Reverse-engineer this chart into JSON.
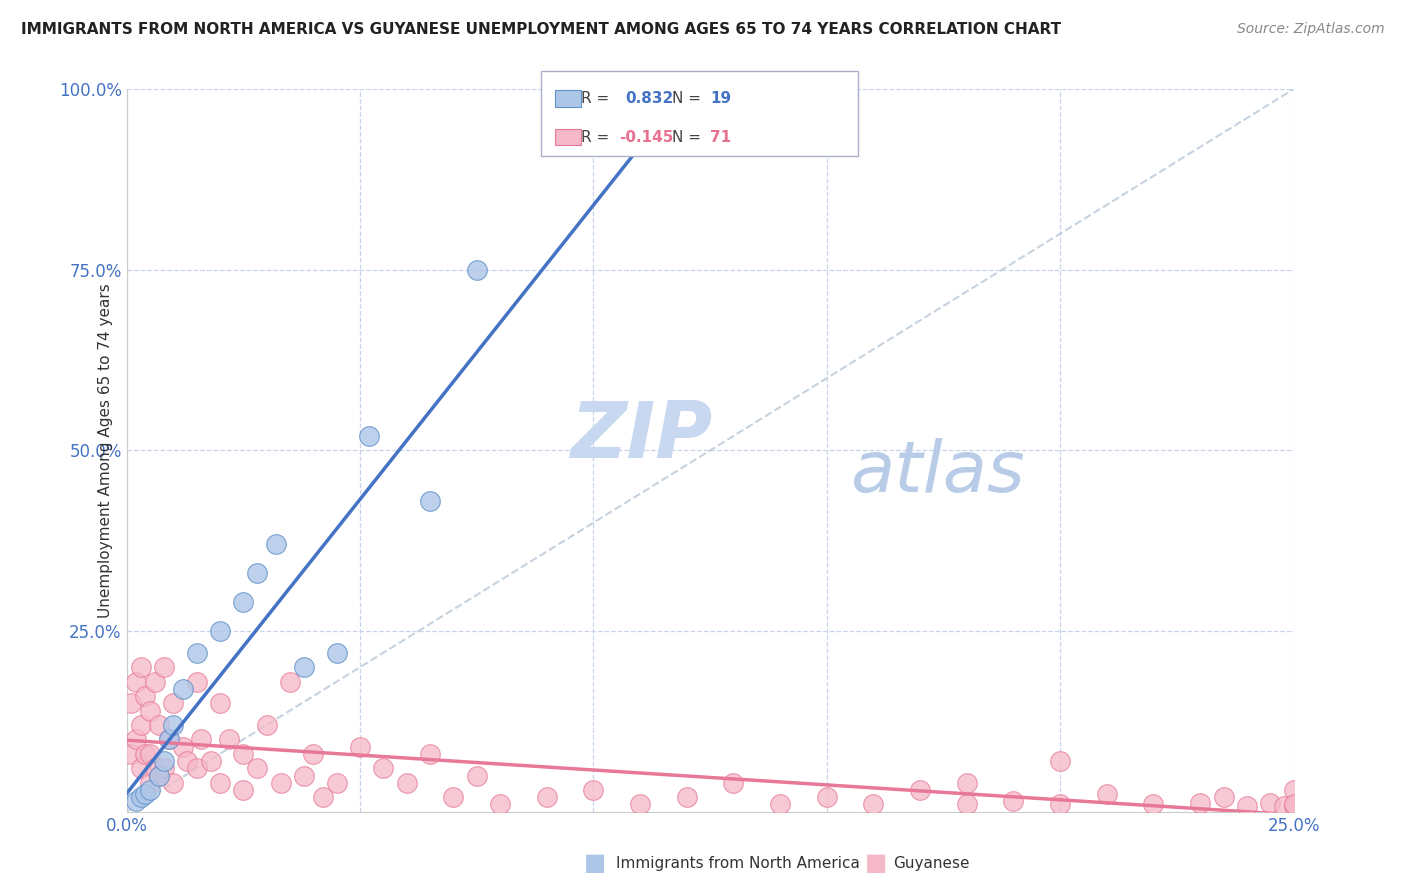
{
  "title": "IMMIGRANTS FROM NORTH AMERICA VS GUYANESE UNEMPLOYMENT AMONG AGES 65 TO 74 YEARS CORRELATION CHART",
  "source": "Source: ZipAtlas.com",
  "ylabel": "Unemployment Among Ages 65 to 74 years",
  "xmin": 0.0,
  "xmax": 0.25,
  "ymin": 0.0,
  "ymax": 1.0,
  "xticks": [
    0.0,
    0.25
  ],
  "xticklabels": [
    "0.0%",
    "25.0%"
  ],
  "yticks": [
    0.0,
    0.25,
    0.5,
    0.75,
    1.0
  ],
  "yticklabels": [
    "",
    "25.0%",
    "50.0%",
    "75.0%",
    "100.0%"
  ],
  "blue_label": "Immigrants from North America",
  "pink_label": "Guyanese",
  "R_blue": 0.832,
  "N_blue": 19,
  "R_pink": -0.145,
  "N_pink": 71,
  "blue_color": "#adc6e8",
  "blue_edge_color": "#6090c8",
  "blue_line_color": "#4472c4",
  "pink_color": "#f5b8c8",
  "pink_edge_color": "#e87898",
  "pink_line_color": "#e87898",
  "background_color": "#ffffff",
  "grid_color": "#c8d4e8",
  "watermark_zip_color": "#c8d8f0",
  "watermark_atlas_color": "#b8cce8",
  "blue_x": [
    0.002,
    0.003,
    0.004,
    0.005,
    0.007,
    0.008,
    0.009,
    0.01,
    0.012,
    0.015,
    0.02,
    0.025,
    0.028,
    0.032,
    0.038,
    0.045,
    0.052,
    0.065,
    0.075
  ],
  "blue_y": [
    0.015,
    0.02,
    0.025,
    0.03,
    0.05,
    0.07,
    0.1,
    0.12,
    0.17,
    0.22,
    0.25,
    0.29,
    0.33,
    0.37,
    0.2,
    0.22,
    0.52,
    0.43,
    0.75
  ],
  "pink_x": [
    0.001,
    0.001,
    0.002,
    0.002,
    0.003,
    0.003,
    0.003,
    0.004,
    0.004,
    0.005,
    0.005,
    0.005,
    0.006,
    0.006,
    0.007,
    0.007,
    0.008,
    0.008,
    0.009,
    0.01,
    0.01,
    0.012,
    0.013,
    0.015,
    0.015,
    0.016,
    0.018,
    0.02,
    0.02,
    0.022,
    0.025,
    0.025,
    0.028,
    0.03,
    0.033,
    0.035,
    0.038,
    0.04,
    0.042,
    0.045,
    0.05,
    0.055,
    0.06,
    0.065,
    0.07,
    0.075,
    0.08,
    0.09,
    0.1,
    0.11,
    0.12,
    0.13,
    0.14,
    0.15,
    0.16,
    0.17,
    0.18,
    0.19,
    0.2,
    0.21,
    0.22,
    0.23,
    0.235,
    0.24,
    0.245,
    0.248,
    0.25,
    0.25,
    0.25,
    0.2,
    0.18
  ],
  "pink_y": [
    0.08,
    0.15,
    0.1,
    0.18,
    0.12,
    0.06,
    0.2,
    0.08,
    0.16,
    0.14,
    0.08,
    0.04,
    0.18,
    0.06,
    0.12,
    0.05,
    0.2,
    0.06,
    0.1,
    0.15,
    0.04,
    0.09,
    0.07,
    0.18,
    0.06,
    0.1,
    0.07,
    0.15,
    0.04,
    0.1,
    0.08,
    0.03,
    0.06,
    0.12,
    0.04,
    0.18,
    0.05,
    0.08,
    0.02,
    0.04,
    0.09,
    0.06,
    0.04,
    0.08,
    0.02,
    0.05,
    0.01,
    0.02,
    0.03,
    0.01,
    0.02,
    0.04,
    0.01,
    0.02,
    0.01,
    0.03,
    0.01,
    0.015,
    0.01,
    0.025,
    0.01,
    0.012,
    0.02,
    0.008,
    0.012,
    0.008,
    0.03,
    0.008,
    0.01,
    0.07,
    0.04
  ]
}
